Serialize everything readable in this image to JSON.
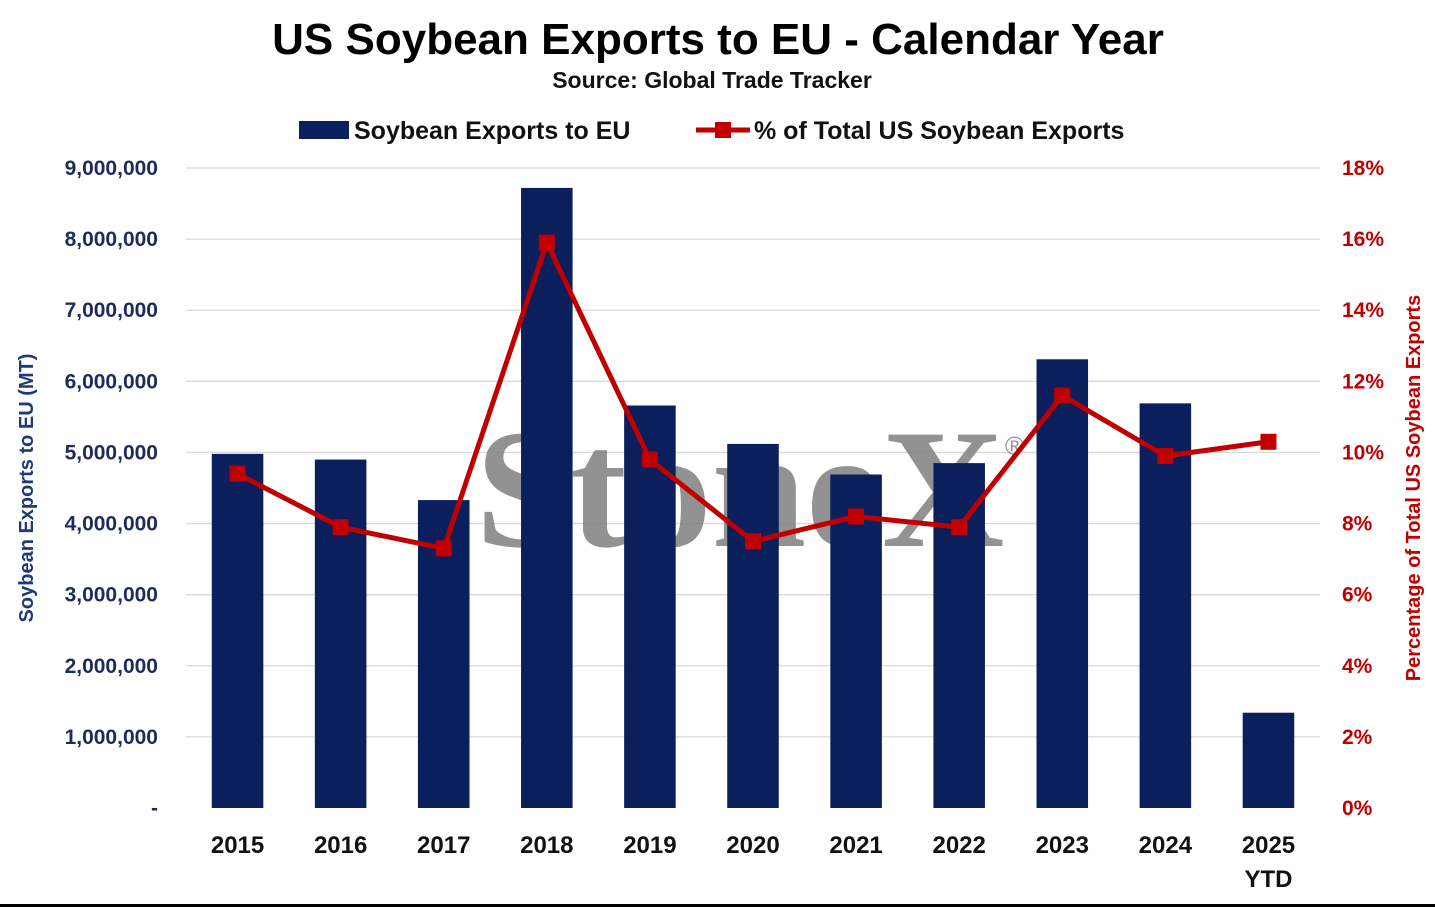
{
  "chart_data": {
    "type": "bar",
    "title": "US Soybean Exports to EU  - Calendar Year",
    "subtitle": "Source: Global Trade Tracker",
    "watermark": "StoneX",
    "watermark_mark": "®",
    "ylabel": "Soybean Exports to EU (MT)",
    "y2label": "Percentage of Total US Soybean Exports",
    "ylim": [
      0,
      9000000
    ],
    "y2lim": [
      0,
      18
    ],
    "yticks": [
      0,
      1000000,
      2000000,
      3000000,
      4000000,
      5000000,
      6000000,
      7000000,
      8000000,
      9000000
    ],
    "ytick_labels": [
      "-",
      "1,000,000",
      "2,000,000",
      "3,000,000",
      "4,000,000",
      "5,000,000",
      "6,000,000",
      "7,000,000",
      "8,000,000",
      "9,000,000"
    ],
    "y2ticks": [
      0,
      2,
      4,
      6,
      8,
      10,
      12,
      14,
      16,
      18
    ],
    "y2tick_labels": [
      "0%",
      "2%",
      "4%",
      "6%",
      "8%",
      "10%",
      "12%",
      "14%",
      "16%",
      "18%"
    ],
    "grid": true,
    "legend_position": "top-center",
    "categories": [
      [
        "2015"
      ],
      [
        "2016"
      ],
      [
        "2017"
      ],
      [
        "2018"
      ],
      [
        "2019"
      ],
      [
        "2020"
      ],
      [
        "2021"
      ],
      [
        "2022"
      ],
      [
        "2023"
      ],
      [
        "2024"
      ],
      [
        "2025",
        "YTD"
      ]
    ],
    "series": [
      {
        "name": "Soybean Exports to EU",
        "type": "bar",
        "axis": "left",
        "color": "#0B1F5C",
        "values": [
          4980000,
          4900000,
          4330000,
          8720000,
          5660000,
          5120000,
          4690000,
          4850000,
          6310000,
          5690000,
          1340000
        ]
      },
      {
        "name": "% of Total US Soybean Exports",
        "type": "line",
        "axis": "right",
        "color": "#C00000",
        "marker": "square",
        "values": [
          9.4,
          7.9,
          7.3,
          15.9,
          9.8,
          7.5,
          8.2,
          7.9,
          11.6,
          9.9,
          10.3
        ]
      }
    ]
  }
}
